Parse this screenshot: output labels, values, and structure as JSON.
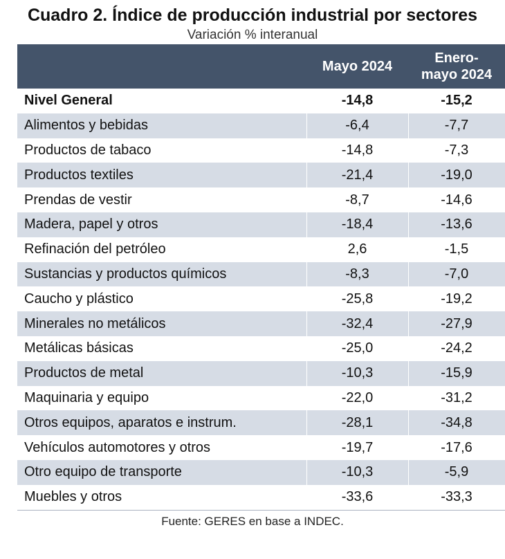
{
  "title": "Cuadro 2. Índice de producción industrial por sectores",
  "subtitle": "Variación % interanual",
  "header": {
    "col1": "",
    "col2": "Mayo 2024",
    "col3_line1": "Enero-",
    "col3_line2": "mayo 2024"
  },
  "rows": [
    {
      "sector": "Nivel General",
      "may": "-14,8",
      "ytd": "-15,2"
    },
    {
      "sector": "Alimentos y bebidas",
      "may": "-6,4",
      "ytd": "-7,7"
    },
    {
      "sector": "Productos de tabaco",
      "may": "-14,8",
      "ytd": "-7,3"
    },
    {
      "sector": "Productos textiles",
      "may": "-21,4",
      "ytd": "-19,0"
    },
    {
      "sector": "Prendas de vestir",
      "may": "-8,7",
      "ytd": "-14,6"
    },
    {
      "sector": "Madera, papel y otros",
      "may": "-18,4",
      "ytd": "-13,6"
    },
    {
      "sector": "Refinación del petróleo",
      "may": "2,6",
      "ytd": "-1,5"
    },
    {
      "sector": "Sustancias y productos químicos",
      "may": "-8,3",
      "ytd": "-7,0"
    },
    {
      "sector": "Caucho y plástico",
      "may": "-25,8",
      "ytd": "-19,2"
    },
    {
      "sector": "Minerales no metálicos",
      "may": "-32,4",
      "ytd": "-27,9"
    },
    {
      "sector": "Metálicas básicas",
      "may": "-25,0",
      "ytd": "-24,2"
    },
    {
      "sector": "Productos de metal",
      "may": "-10,3",
      "ytd": "-15,9"
    },
    {
      "sector": "Maquinaria y equipo",
      "may": "-22,0",
      "ytd": "-31,2"
    },
    {
      "sector": "Otros equipos, aparatos e instrum.",
      "may": "-28,1",
      "ytd": "-34,8"
    },
    {
      "sector": "Vehículos automotores y otros",
      "may": "-19,7",
      "ytd": "-17,6"
    },
    {
      "sector": "Otro equipo de transporte",
      "may": "-10,3",
      "ytd": "-5,9"
    },
    {
      "sector": "Muebles y otros",
      "may": "-33,6",
      "ytd": "-33,3"
    }
  ],
  "source": "Fuente: GERES en base a INDEC."
}
